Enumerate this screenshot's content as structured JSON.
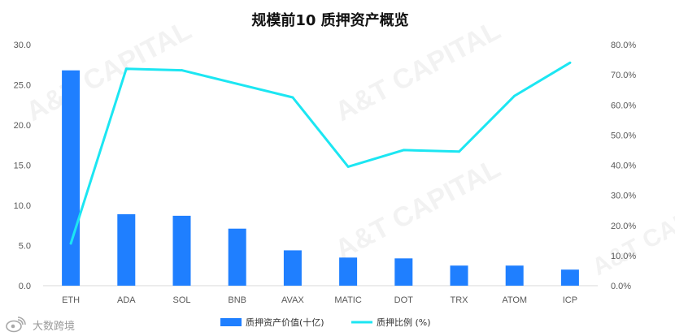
{
  "chart_data": {
    "type": "bar",
    "title": "规模前10 质押资产概览",
    "categories": [
      "ETH",
      "ADA",
      "SOL",
      "BNB",
      "AVAX",
      "MATIC",
      "DOT",
      "TRX",
      "ATOM",
      "ICP"
    ],
    "series": [
      {
        "name": "质押资产价值(十亿)",
        "type": "bar",
        "axis": "left",
        "color": "#1f7fff",
        "values": [
          26.8,
          8.9,
          8.7,
          7.1,
          4.4,
          3.5,
          3.4,
          2.5,
          2.5,
          2.0
        ]
      },
      {
        "name": "质押比例 (%)",
        "type": "line",
        "axis": "right",
        "color": "#1ce6f2",
        "values": [
          14.0,
          72.0,
          71.5,
          67.0,
          62.5,
          39.5,
          45.0,
          44.5,
          63.0,
          74.0
        ]
      }
    ],
    "y_left": {
      "ylim": [
        0,
        30
      ],
      "ticks": [
        "0.0",
        "5.0",
        "10.0",
        "15.0",
        "20.0",
        "25.0",
        "30.0"
      ]
    },
    "y_right": {
      "ylim": [
        0,
        80
      ],
      "ticks": [
        "0.0%",
        "10.0%",
        "20.0%",
        "30.0%",
        "40.0%",
        "50.0%",
        "60.0%",
        "70.0%",
        "80.0%"
      ]
    },
    "grid": false,
    "legend_position": "bottom"
  },
  "watermark": {
    "text": "A&T CAPITAL"
  },
  "source": {
    "icon": "weibo-logo-icon",
    "text": "大数跨境"
  }
}
